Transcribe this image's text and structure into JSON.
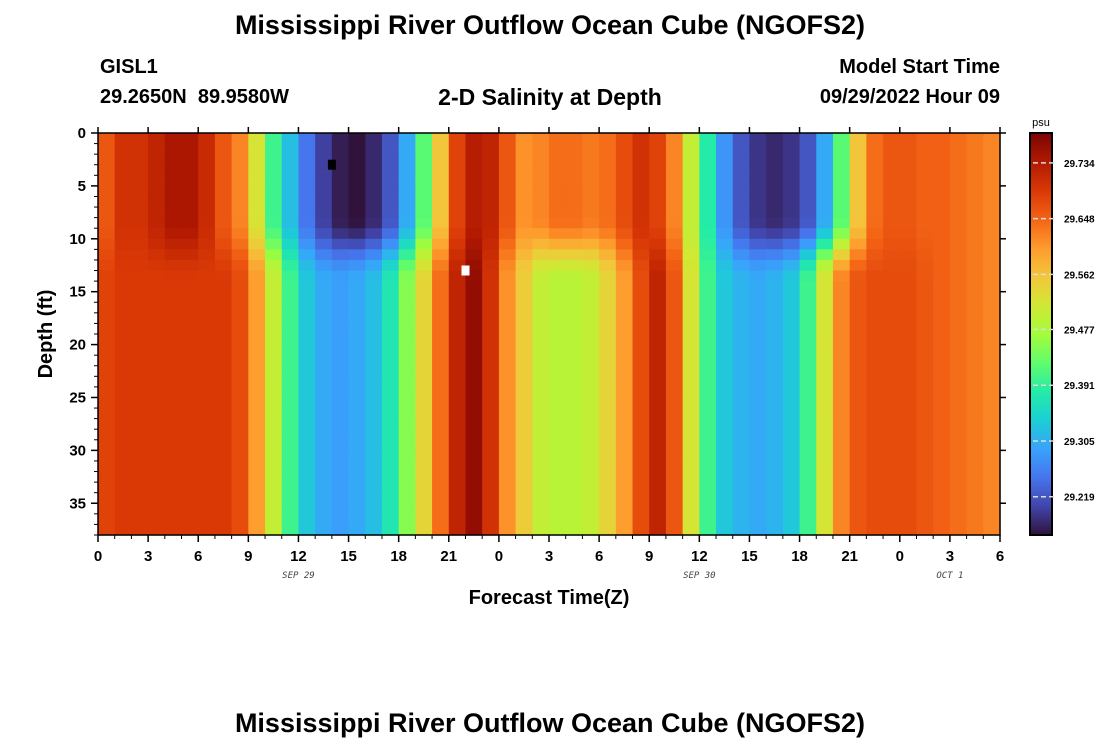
{
  "header": {
    "title": "Mississippi River Outflow Ocean Cube (NGOFS2)",
    "station_id": "GISL1",
    "station_coords": "29.2650N  89.9580W",
    "subtitle": "2-D Salinity at Depth",
    "model_start_label": "Model Start Time",
    "model_start_value": "09/29/2022 Hour 09"
  },
  "footer": {
    "title": "Mississippi River Outflow Ocean Cube (NGOFS2)"
  },
  "colors": {
    "colormap": [
      "#30123b",
      "#4145ab",
      "#4675ed",
      "#39a2fc",
      "#1bcfd4",
      "#24eca6",
      "#61fc6c",
      "#a4fc3b",
      "#d1e834",
      "#f3c63a",
      "#fe9b2d",
      "#f36315",
      "#d93806",
      "#b11901",
      "#7a0403"
    ]
  },
  "chart_data": {
    "type": "heatmap",
    "title": "2-D Salinity at Depth",
    "xlabel": "Forecast Time(Z)",
    "ylabel": "Depth (ft)",
    "x_tick_labels": [
      "0",
      "3",
      "6",
      "9",
      "12",
      "15",
      "18",
      "21",
      "0",
      "3",
      "6",
      "9",
      "12",
      "15",
      "18",
      "21",
      "0",
      "3",
      "6"
    ],
    "x_range_hours": [
      0,
      54
    ],
    "date_labels": [
      {
        "label": "SEP 29",
        "at_hour": 12
      },
      {
        "label": "SEP 30",
        "at_hour": 36
      },
      {
        "label": "OCT 1",
        "at_hour": 51
      }
    ],
    "y_ticks": [
      0,
      5,
      10,
      15,
      20,
      25,
      30,
      35
    ],
    "y_range": [
      0,
      38
    ],
    "y_inverted": true,
    "colorbar": {
      "unit": "psu",
      "range": [
        29.16,
        29.78
      ],
      "ticks": [
        29.734,
        29.648,
        29.562,
        29.477,
        29.391,
        29.305,
        29.219
      ]
    },
    "grid_hours": 54,
    "grid_depth_rows": 38,
    "surface_profile": [
      29.66,
      29.7,
      29.7,
      29.72,
      29.74,
      29.74,
      29.71,
      29.66,
      29.62,
      29.52,
      29.4,
      29.32,
      29.25,
      29.2,
      29.17,
      29.16,
      29.18,
      29.22,
      29.3,
      29.42,
      29.56,
      29.68,
      29.73,
      29.72,
      29.66,
      29.61,
      29.62,
      29.64,
      29.64,
      29.63,
      29.64,
      29.67,
      29.7,
      29.68,
      29.62,
      29.5,
      29.38,
      29.28,
      29.22,
      29.19,
      29.18,
      29.19,
      29.22,
      29.3,
      29.42,
      29.56,
      29.64,
      29.66,
      29.66,
      29.65,
      29.65,
      29.64,
      29.63,
      29.62
    ],
    "deep_profile": [
      29.68,
      29.69,
      29.69,
      29.69,
      29.69,
      29.69,
      29.69,
      29.69,
      29.67,
      29.6,
      29.5,
      29.4,
      29.33,
      29.3,
      29.29,
      29.3,
      29.32,
      29.37,
      29.45,
      29.54,
      29.64,
      29.72,
      29.76,
      29.7,
      29.61,
      29.55,
      29.5,
      29.49,
      29.49,
      29.5,
      29.54,
      29.6,
      29.67,
      29.72,
      29.66,
      29.52,
      29.4,
      29.33,
      29.31,
      29.3,
      29.31,
      29.33,
      29.4,
      29.52,
      29.62,
      29.66,
      29.67,
      29.67,
      29.67,
      29.66,
      29.65,
      29.64,
      29.63,
      29.62
    ],
    "markers": [
      {
        "hour": 14.0,
        "depth": 3.0,
        "color": "#000000"
      },
      {
        "hour": 22.0,
        "depth": 13.0,
        "color": "#ffffff"
      }
    ]
  }
}
